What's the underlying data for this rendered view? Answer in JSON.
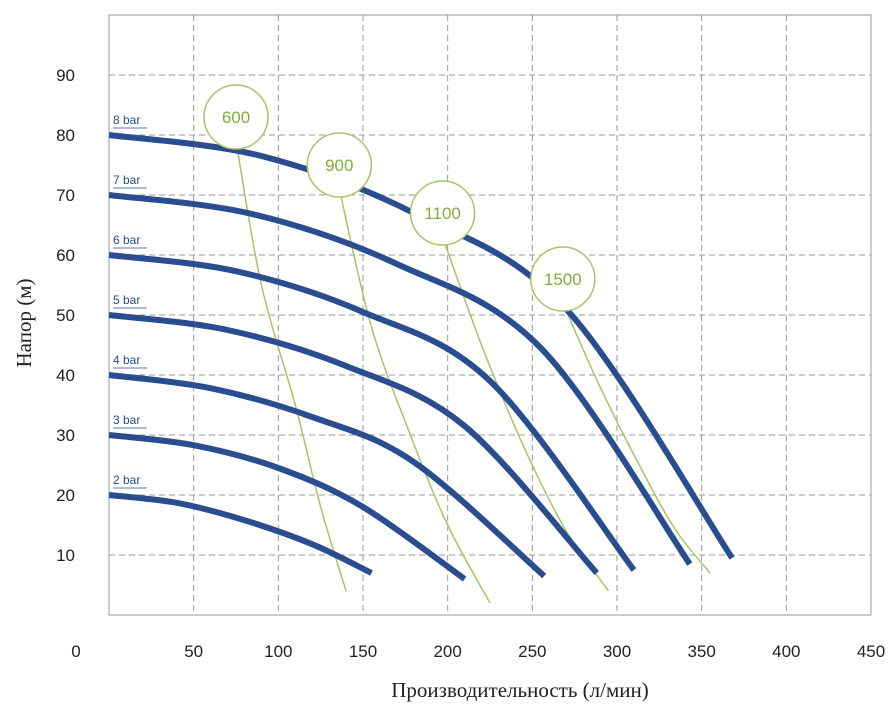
{
  "chart_data": {
    "type": "line",
    "xlabel": "Производительность (л/мин)",
    "ylabel": "Напор (м)",
    "xlim": [
      0,
      450
    ],
    "ylim": [
      0,
      100
    ],
    "x_ticks": [
      "0",
      "50",
      "100",
      "150",
      "200",
      "250",
      "300",
      "350",
      "400",
      "450"
    ],
    "y_ticks": [
      "10",
      "20",
      "30",
      "40",
      "50",
      "60",
      "70",
      "80",
      "90"
    ],
    "grid": true,
    "colors": {
      "pressure_curve": "#2a4d8f",
      "rpm_curve": "#a8c46a",
      "rpm_text": "#7fae3e",
      "grid": "#9a9a9a",
      "label_text": "#2a4d8f"
    },
    "series": [
      {
        "name": "2 bar",
        "x": [
          0,
          40,
          80,
          120,
          155
        ],
        "y": [
          20,
          18.7,
          15.8,
          11.8,
          7
        ]
      },
      {
        "name": "3 bar",
        "x": [
          0,
          50,
          100,
          150,
          210
        ],
        "y": [
          30,
          28.3,
          24.5,
          18,
          6
        ]
      },
      {
        "name": "4 bar",
        "x": [
          0,
          60,
          120,
          180,
          257
        ],
        "y": [
          40,
          37.8,
          33,
          25.5,
          6.5
        ]
      },
      {
        "name": "5 bar",
        "x": [
          0,
          70,
          140,
          210,
          288
        ],
        "y": [
          50,
          47.5,
          41.5,
          31.5,
          7
        ]
      },
      {
        "name": "6 bar",
        "x": [
          0,
          75,
          150,
          225,
          310
        ],
        "y": [
          60,
          57.3,
          50.5,
          39,
          7.5
        ]
      },
      {
        "name": "7 bar",
        "x": [
          0,
          85,
          170,
          255,
          343
        ],
        "y": [
          70,
          66.8,
          58.5,
          44.5,
          8.5
        ]
      },
      {
        "name": "8 bar",
        "x": [
          0,
          90,
          180,
          270,
          368
        ],
        "y": [
          80,
          76.5,
          67,
          51,
          9.5
        ]
      }
    ],
    "rpm_curves": [
      {
        "label": "600",
        "x": [
          75,
          90,
          110,
          125,
          140
        ],
        "y": [
          79,
          55,
          35,
          18,
          4
        ]
      },
      {
        "label": "900",
        "x": [
          136,
          155,
          178,
          200,
          225
        ],
        "y": [
          71,
          48,
          30,
          15,
          2
        ]
      },
      {
        "label": "1100",
        "x": [
          197,
          220,
          245,
          270,
          295
        ],
        "y": [
          63,
          45,
          28,
          14,
          4
        ]
      },
      {
        "label": "1500",
        "x": [
          268,
          290,
          315,
          335,
          355
        ],
        "y": [
          52,
          38,
          24,
          14,
          7
        ]
      }
    ]
  }
}
